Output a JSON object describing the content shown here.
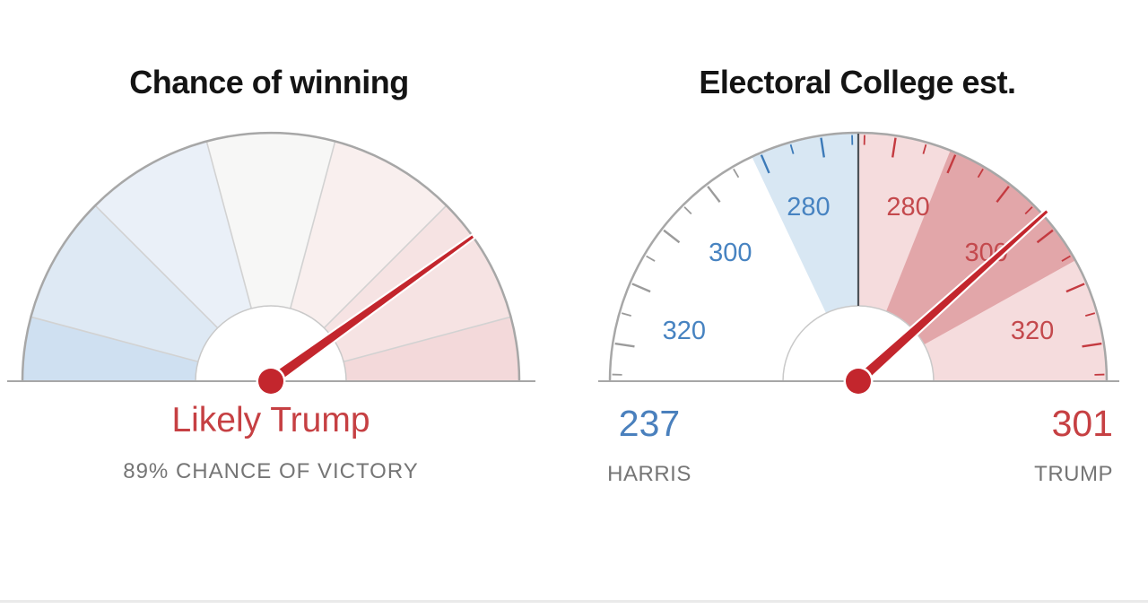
{
  "page": {
    "background": "#ffffff"
  },
  "chart_data": [
    {
      "type": "gauge",
      "name": "chance_of_winning",
      "title": "Chance of winning",
      "status_label": "Likely Trump",
      "status_detail": "89% CHANCE OF VICTORY",
      "chance_of_victory_pct": 89,
      "leader": "Trump",
      "needle_angle_from_vertical_deg": 54.4,
      "segments": [
        {
          "from_deg": 0,
          "to_deg": 15,
          "color": "#cfe0f1"
        },
        {
          "from_deg": 15,
          "to_deg": 45,
          "color": "#dee9f4"
        },
        {
          "from_deg": 45,
          "to_deg": 75,
          "color": "#eaf0f8"
        },
        {
          "from_deg": 75,
          "to_deg": 105,
          "color": "#f7f7f6"
        },
        {
          "from_deg": 105,
          "to_deg": 135,
          "color": "#f9efee"
        },
        {
          "from_deg": 135,
          "to_deg": 165,
          "color": "#f6e3e3"
        },
        {
          "from_deg": 165,
          "to_deg": 180,
          "color": "#f3d9da"
        }
      ],
      "colors": {
        "needle": "#c3262d",
        "rim": "#a7a7a7",
        "segment_divider": "#d2d2d2",
        "inner_ring": "#c9c9c9",
        "status_text": "#c64043",
        "detail_text": "#757575"
      }
    },
    {
      "type": "gauge",
      "name": "electoral_college_estimate",
      "title": "Electoral College est.",
      "harris": {
        "value": 237,
        "label": "HARRIS"
      },
      "trump": {
        "value": 301,
        "label": "TRUMP"
      },
      "tie_ev": 269,
      "deg_per_ev": 1.45,
      "needle_ev": 301,
      "needle_angle_from_vertical_deg": 48,
      "tick_ev_start": 270,
      "tick_ev_end": 330,
      "tick_ev_step": 5,
      "tick_labels": [
        280,
        300,
        320
      ],
      "bands": [
        {
          "side": "trump",
          "ev_from": 269,
          "ev_to": 331,
          "color": "#f5dcdd"
        },
        {
          "side": "trump",
          "ev_from": 284,
          "ev_to": 311,
          "color": "#e2a6a9"
        },
        {
          "side": "harris",
          "ev_from": 269,
          "ev_to": 286.5,
          "color": "#d8e7f3"
        }
      ],
      "colors": {
        "needle": "#c3262d",
        "rim": "#a7a7a7",
        "inner_ring": "#c9c9c9",
        "center_divider": "#4e5257",
        "tick_harris": "#3c7ab8",
        "tick_neutral": "#9b9b9b",
        "tick_trump": "#c43a40",
        "label_harris": "#4783c1",
        "label_trump": "#c4494d"
      }
    }
  ]
}
